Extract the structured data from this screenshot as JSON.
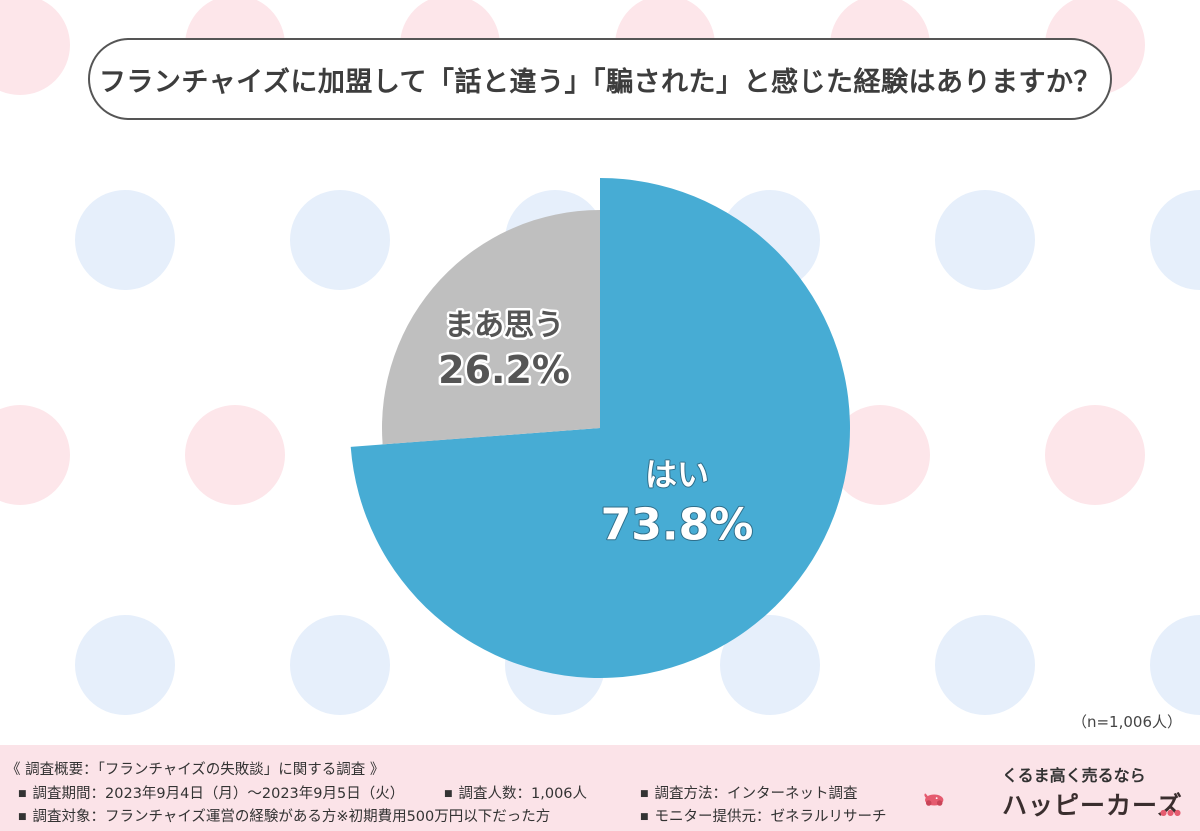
{
  "title": "フランチャイズに加盟して「話と違う」「騙された」と感じた経験はありますか？",
  "chart_data": {
    "type": "pie",
    "slices": [
      {
        "label": "はい",
        "value": 73.8,
        "value_label": "73.8%",
        "color": "#47acd4"
      },
      {
        "label": "まあ思う",
        "value": 26.2,
        "value_label": "26.2%",
        "color": "#bfbfbf"
      }
    ],
    "start": "12 o'clock, clockwise",
    "legend": "none"
  },
  "sample_size": "（n=1,006人）",
  "footer": {
    "heading": "《 調査概要：「フランチャイズの失敗談」に関する調査 》",
    "items": [
      "調査期間：2023年9月4日（月）～2023年9月5日（火）",
      "調査人数：1,006人",
      "調査方法：インターネット調査",
      "調査対象：フランチャイズ運営の経験がある方※初期費用500万円以下だった方",
      "モニター提供元：ゼネラルリサーチ"
    ]
  },
  "logo": {
    "tagline": "くるま高く売るなら",
    "brand": "ハッピーカーズ",
    "brand_color": "#e55b6f"
  },
  "background": {
    "dot_colors": [
      "#fde6ea",
      "#e6effb"
    ]
  }
}
